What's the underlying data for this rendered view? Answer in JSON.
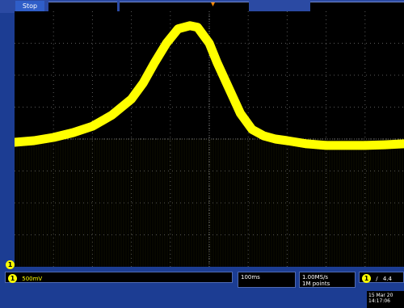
{
  "top": {
    "status": "Stop"
  },
  "channel1": {
    "badge": "1",
    "scale": "500mV",
    "ground_marker": "1"
  },
  "horizontal": {
    "time_div": "100ms"
  },
  "acquisition": {
    "rate": "1.00MS/s",
    "points": "1M points"
  },
  "trigger": {
    "source": "1",
    "slope": "/",
    "level": "4.4"
  },
  "datetime": {
    "date": "15 Mar 20",
    "time": "14:17:06"
  },
  "colors": {
    "trace": "#ffff00",
    "frame": "#1c3d93",
    "graticule": "#5a5a5a"
  },
  "chart_data": {
    "type": "line",
    "title": "",
    "xlabel": "",
    "ylabel": "",
    "xlim": [
      0,
      10
    ],
    "ylim": [
      -4,
      4
    ],
    "grid": true,
    "series": [
      {
        "x": [
          0,
          0.5,
          1,
          1.5,
          2,
          2.5,
          3,
          3.3,
          3.6,
          3.9,
          4.2,
          4.5,
          4.7,
          5.0,
          5.2,
          5.5,
          5.8,
          6.1,
          6.4,
          6.7,
          7,
          7.5,
          8,
          8.5,
          9,
          9.5,
          10
        ],
        "y": [
          -0.1,
          -0.05,
          0.05,
          0.2,
          0.4,
          0.75,
          1.25,
          1.75,
          2.4,
          3.0,
          3.45,
          3.55,
          3.5,
          3.0,
          2.4,
          1.6,
          0.8,
          0.3,
          0.1,
          0.0,
          -0.05,
          -0.15,
          -0.2,
          -0.2,
          -0.2,
          -0.18,
          -0.15
        ]
      }
    ]
  }
}
